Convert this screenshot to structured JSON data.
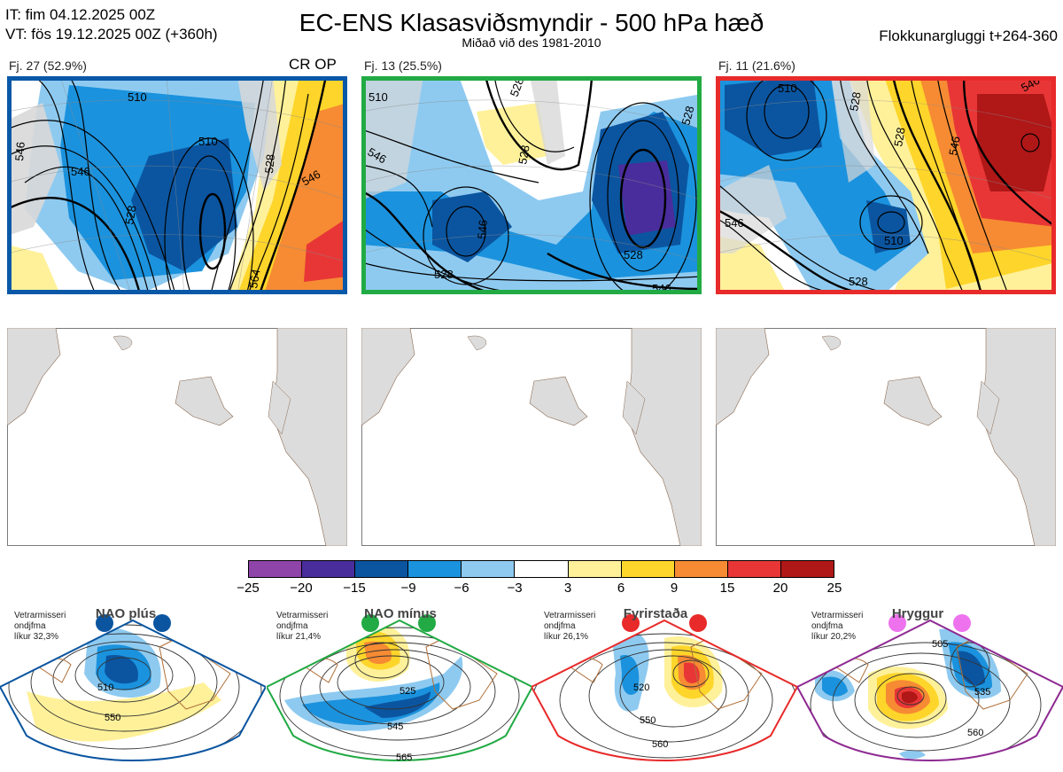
{
  "header": {
    "it_line": "IT: fim 04.12.2025 00Z",
    "vt_line": "VT: fös 19.12.2025 00Z  (+360h)",
    "title": "EC-ENS Klasasviðsmyndir - 500 hPa hæð",
    "subtitle": "Miðað við des 1981-2010",
    "window": "Flokkunargluggi t+264-360"
  },
  "clusters": [
    {
      "label": "Fj. 27 (52.9%)",
      "border": "#0a58a8",
      "op": "CR OP",
      "contours": [
        "510",
        "546",
        "528",
        "546",
        "510",
        "546",
        "528",
        "564"
      ]
    },
    {
      "label": "Fj. 13 (25.5%)",
      "border": "#22aa44",
      "op": "",
      "contours": [
        "510",
        "528",
        "528",
        "528",
        "546",
        "546",
        "528",
        "528",
        "546"
      ]
    },
    {
      "label": "Fj. 11 (21.6%)",
      "border": "#e82a2a",
      "op": "",
      "contours": [
        "510",
        "528",
        "546",
        "546",
        "528",
        "510",
        "528",
        "546"
      ]
    }
  ],
  "colorbar": {
    "colors": [
      "#8e44a8",
      "#4a2d9c",
      "#0b55a0",
      "#1b92dd",
      "#8ecaf0",
      "#ffffff",
      "#fff19a",
      "#fed52a",
      "#f68b33",
      "#e83636",
      "#b01717"
    ],
    "ticks": [
      "−25",
      "−20",
      "−15",
      "−9",
      "−6",
      "−3",
      "3",
      "6",
      "9",
      "15",
      "20",
      "25"
    ]
  },
  "regimes": [
    {
      "name": "NAO plús",
      "color": "#0b55a0",
      "info": [
        "Vetrarmisseri",
        "ondjfma",
        "líkur 32,3%"
      ],
      "contours": [
        "510",
        "550"
      ]
    },
    {
      "name": "NAO mínus",
      "color": "#22aa44",
      "info": [
        "Vetrarmisseri",
        "ondjfma",
        "líkur 21,4%"
      ],
      "contours": [
        "525",
        "545",
        "565"
      ]
    },
    {
      "name": "Fyrirstaða",
      "color": "#e82a2a",
      "info": [
        "Vetrarmisseri",
        "ondjfma",
        "líkur 26,1%"
      ],
      "contours": [
        "520",
        "550",
        "560"
      ]
    },
    {
      "name": "Hryggur",
      "color": "#ee72ee",
      "info": [
        "Vetrarmisseri",
        "ondjfma",
        "líkur 20,2%"
      ],
      "contours": [
        "505",
        "535",
        "560"
      ]
    }
  ]
}
